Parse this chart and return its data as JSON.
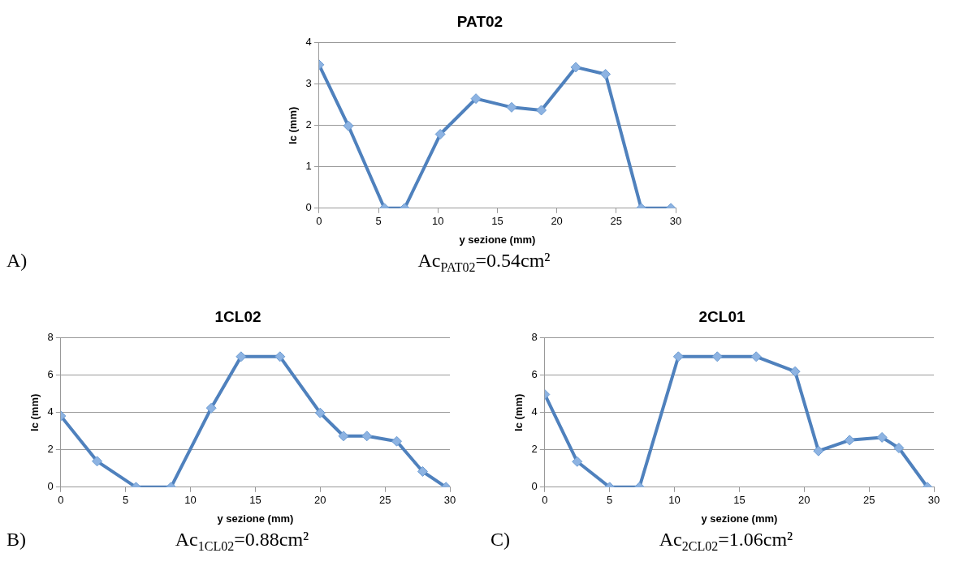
{
  "chart_data": [
    {
      "type": "line",
      "title": "PAT02",
      "xlabel": "y sezione (mm)",
      "ylabel": "lc (mm)",
      "x": [
        0,
        2.47,
        5.5,
        7.2,
        10.2,
        13.2,
        16.2,
        18.7,
        21.6,
        24.1,
        27.1,
        29.6
      ],
      "series": [
        {
          "color": "#4f81bd",
          "values": [
            3.47,
            1.99,
            0,
            0,
            1.79,
            2.65,
            2.44,
            2.37,
            3.41,
            3.24,
            0,
            0
          ]
        }
      ],
      "xlim": [
        0,
        30
      ],
      "xticks": [
        0,
        5,
        10,
        15,
        20,
        25,
        30
      ],
      "ylim": [
        0,
        4
      ],
      "yticks": [
        0,
        1,
        2,
        3,
        4
      ],
      "grid": "y",
      "legend": false,
      "marker": "diamond",
      "line_style": "solid",
      "annotations": [
        "A)",
        "Ac$_{PAT02}$=0.54cm²"
      ]
    },
    {
      "type": "line",
      "title": "1CL02",
      "xlabel": "y sezione (mm)",
      "ylabel": "lc (mm)",
      "x": [
        0,
        2.8,
        5.8,
        8.5,
        11.6,
        13.9,
        16.9,
        20.0,
        21.8,
        23.6,
        25.9,
        27.9,
        29.7
      ],
      "series": [
        {
          "color": "#4f81bd",
          "values": [
            3.82,
            1.39,
            0,
            0,
            4.24,
            7,
            7,
            3.98,
            2.74,
            2.74,
            2.46,
            0.84,
            0
          ]
        }
      ],
      "xlim": [
        0,
        30
      ],
      "xticks": [
        0,
        5,
        10,
        15,
        20,
        25,
        30
      ],
      "ylim": [
        0,
        8
      ],
      "yticks": [
        0,
        2,
        4,
        6,
        8
      ],
      "grid": "y",
      "legend": false,
      "marker": "diamond",
      "line_style": "solid",
      "annotations": [
        "B)",
        "Ac$_{1CL02}$=0.88cm²"
      ]
    },
    {
      "type": "line",
      "title": "2CL01",
      "xlabel": "y sezione (mm)",
      "ylabel": "lc (mm)",
      "x": [
        0,
        2.5,
        5.0,
        7.3,
        10.3,
        13.3,
        16.3,
        19.3,
        21.1,
        23.5,
        26.0,
        27.3,
        29.5
      ],
      "series": [
        {
          "color": "#4f81bd",
          "values": [
            4.97,
            1.37,
            0,
            0,
            7,
            7,
            7,
            6.2,
            1.94,
            2.52,
            2.67,
            2.1,
            0
          ]
        }
      ],
      "xlim": [
        0,
        30
      ],
      "xticks": [
        0,
        5,
        10,
        15,
        20,
        25,
        30
      ],
      "ylim": [
        0,
        8
      ],
      "yticks": [
        0,
        2,
        4,
        6,
        8
      ],
      "grid": "y",
      "legend": false,
      "marker": "diamond",
      "line_style": "solid",
      "annotations": [
        "C)",
        "Ac$_{2CL02}$=1.06cm²"
      ]
    }
  ]
}
